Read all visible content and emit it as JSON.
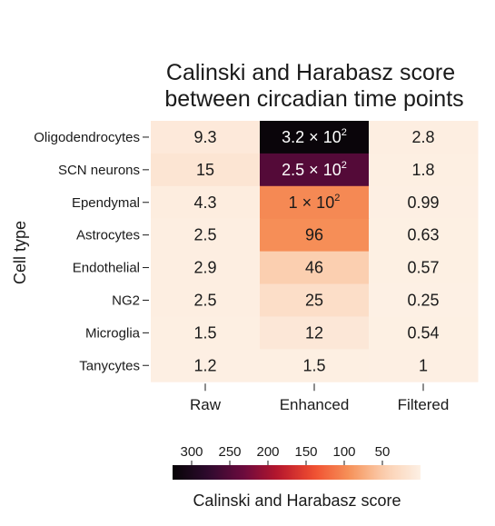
{
  "chart_data": {
    "type": "heatmap",
    "title": [
      "Calinski and Harabasz score",
      "between circadian time points"
    ],
    "ylabel": "Cell type",
    "columns": [
      "Raw",
      "Enhanced",
      "Filtered"
    ],
    "rows": [
      "Oligodendrocytes",
      "SCN neurons",
      "Ependymal",
      "Astrocytes",
      "Endothelial",
      "NG2",
      "Microglia",
      "Tanycytes"
    ],
    "values": [
      [
        9.3,
        320,
        2.8
      ],
      [
        15,
        250,
        1.8
      ],
      [
        4.3,
        100,
        0.99
      ],
      [
        2.5,
        96,
        0.63
      ],
      [
        2.9,
        46,
        0.57
      ],
      [
        2.5,
        25,
        0.25
      ],
      [
        1.5,
        12,
        0.54
      ],
      [
        1.2,
        1.5,
        1
      ]
    ],
    "labels": [
      [
        {
          "text": "9.3"
        },
        {
          "text": "3.2 × 10",
          "exp": "2"
        },
        {
          "text": "2.8"
        }
      ],
      [
        {
          "text": "15"
        },
        {
          "text": "2.5 × 10",
          "exp": "2"
        },
        {
          "text": "1.8"
        }
      ],
      [
        {
          "text": "4.3"
        },
        {
          "text": "1 × 10",
          "exp": "2"
        },
        {
          "text": "0.99"
        }
      ],
      [
        {
          "text": "2.5"
        },
        {
          "text": "96"
        },
        {
          "text": "0.63"
        }
      ],
      [
        {
          "text": "2.9"
        },
        {
          "text": "46"
        },
        {
          "text": "0.57"
        }
      ],
      [
        {
          "text": "2.5"
        },
        {
          "text": "25"
        },
        {
          "text": "0.25"
        }
      ],
      [
        {
          "text": "1.5"
        },
        {
          "text": "12"
        },
        {
          "text": "0.54"
        }
      ],
      [
        {
          "text": "1.2"
        },
        {
          "text": "1.5"
        },
        {
          "text": "1"
        }
      ]
    ],
    "colorbar": {
      "label": "Calinski and Harabasz score",
      "ticks": [
        300,
        250,
        200,
        150,
        100,
        50
      ],
      "range": [
        0,
        325
      ],
      "orientation": "horizontal",
      "reversed": true
    },
    "colormap": [
      "#fdf0e4",
      "#fbcfb0",
      "#f6935a",
      "#f14f30",
      "#b8172d",
      "#6b0a3e",
      "#2e0a2e",
      "#060406"
    ]
  }
}
